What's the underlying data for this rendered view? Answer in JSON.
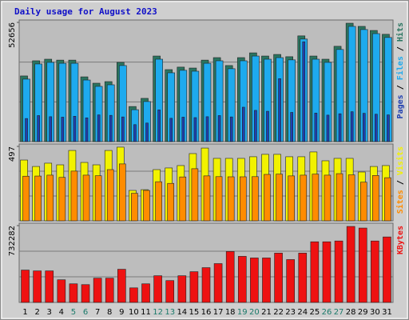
{
  "title": "Daily usage for August 2023",
  "legend_separator": " / ",
  "chart_data": [
    {
      "type": "bar",
      "ylim": [
        0,
        52656
      ],
      "yticks": [
        52656
      ],
      "series": [
        {
          "name": "Pages",
          "color": "#1f3fb0",
          "values": [
            10200,
            11500,
            11000,
            10800,
            11200,
            10500,
            11800,
            11600,
            10900,
            7500,
            8200,
            14000,
            10300,
            10800,
            10600,
            11000,
            11500,
            10900,
            15200,
            13800,
            13400,
            27800,
            12900,
            44100,
            12600,
            11700,
            12300,
            13200,
            12500,
            12100,
            11800
          ]
        },
        {
          "name": "Files",
          "color": "#1eaaee",
          "values": [
            27600,
            34300,
            35000,
            34600,
            34600,
            27200,
            24400,
            25100,
            33600,
            14100,
            17700,
            36400,
            30400,
            31500,
            31100,
            34600,
            35700,
            32200,
            35700,
            37800,
            36400,
            37100,
            36100,
            45300,
            36400,
            35000,
            40700,
            50900,
            49500,
            47700,
            46000
          ]
        },
        {
          "name": "Hits",
          "color": "#2a7560",
          "values": [
            29000,
            35700,
            36400,
            36000,
            36000,
            28600,
            25800,
            26500,
            35000,
            15500,
            19100,
            37800,
            31800,
            32900,
            32500,
            36000,
            37100,
            33600,
            37100,
            39200,
            37800,
            38500,
            37500,
            46700,
            37800,
            36400,
            42100,
            52300,
            50900,
            49100,
            47400
          ]
        }
      ]
    },
    {
      "type": "bar",
      "ylim": [
        0,
        497
      ],
      "yticks": [
        497
      ],
      "series": [
        {
          "name": "Sites",
          "color": "#ff8c00",
          "values": [
            298,
            299,
            305,
            290,
            332,
            305,
            301,
            342,
            380,
            184,
            203,
            261,
            250,
            293,
            348,
            300,
            295,
            294,
            294,
            295,
            310,
            312,
            300,
            305,
            312,
            305,
            315,
            307,
            258,
            303,
            288
          ]
        },
        {
          "name": "Visits",
          "color": "#f2f200",
          "values": [
            406,
            363,
            385,
            374,
            470,
            390,
            374,
            470,
            492,
            203,
            208,
            342,
            353,
            369,
            449,
            486,
            417,
            417,
            417,
            428,
            444,
            444,
            428,
            428,
            460,
            401,
            417,
            417,
            326,
            363,
            369
          ]
        }
      ]
    },
    {
      "type": "bar",
      "ylim": [
        0,
        732282
      ],
      "yticks": [
        732282
      ],
      "categories": [
        "1",
        "2",
        "3",
        "4",
        "5",
        "6",
        "7",
        "8",
        "9",
        "10",
        "11",
        "12",
        "13",
        "14",
        "15",
        "16",
        "17",
        "18",
        "19",
        "20",
        "21",
        "22",
        "23",
        "24",
        "25",
        "26",
        "27",
        "28",
        "29",
        "30",
        "31"
      ],
      "category_colors": [
        "#000000",
        "#000000",
        "#000000",
        "#000000",
        "#1a7a6a",
        "#1a7a6a",
        "#000000",
        "#000000",
        "#000000",
        "#000000",
        "#000000",
        "#1a7a6a",
        "#1a7a6a",
        "#000000",
        "#000000",
        "#000000",
        "#000000",
        "#000000",
        "#1a7a6a",
        "#1a7a6a",
        "#000000",
        "#000000",
        "#000000",
        "#000000",
        "#000000",
        "#1a7a6a",
        "#1a7a6a",
        "#000000",
        "#000000",
        "#000000",
        "#000000"
      ],
      "series": [
        {
          "name": "KBytes",
          "color": "#ee1111",
          "values": [
            308320,
            300600,
            300600,
            215800,
            177300,
            169600,
            231200,
            231200,
            316000,
            138700,
            177300,
            254400,
            208100,
            254400,
            292900,
            331400,
            370000,
            485600,
            439400,
            423900,
            423900,
            470200,
            408500,
            470200,
            578100,
            578100,
            585800,
            724600,
            709100,
            585800,
            624300
          ]
        }
      ]
    }
  ]
}
